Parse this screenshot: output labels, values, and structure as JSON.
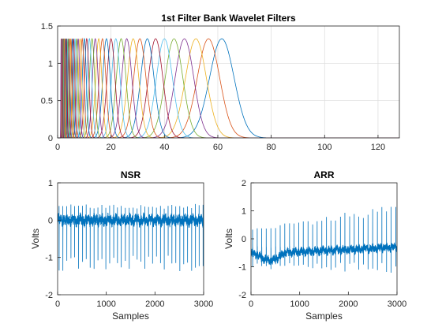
{
  "chart_data": [
    {
      "type": "line",
      "title": "1st Filter Bank Wavelet Filters",
      "xlabel": "",
      "ylabel": "",
      "xlim": [
        0,
        128
      ],
      "ylim": [
        0,
        1.5
      ],
      "xticks": [
        0,
        20,
        40,
        60,
        80,
        100,
        120
      ],
      "yticks": [
        0,
        0.5,
        1,
        1.5
      ],
      "ytick_labels": [
        "0",
        "0.5",
        "1",
        "1.5"
      ],
      "grid": true,
      "peak": 1.33,
      "filter_centers": [
        61.5,
        56.5,
        51.8,
        47.5,
        43.6,
        40.0,
        36.7,
        33.6,
        30.8,
        28.3,
        25.9,
        23.8,
        21.8,
        20.0,
        18.3,
        16.8,
        15.4,
        14.1,
        12.9,
        11.9,
        10.9,
        10.0,
        9.2,
        8.4,
        7.7,
        7.1,
        6.5,
        6.0,
        5.5,
        5.0,
        4.6,
        4.2,
        3.9,
        3.5,
        3.3,
        3.0,
        2.7,
        2.5,
        2.3,
        2.1,
        1.9,
        1.8,
        1.6,
        1.5,
        1.4,
        1.3
      ],
      "filter_widths": [
        4.6,
        4.2,
        3.9,
        3.5,
        3.3,
        3.0,
        2.7,
        2.5,
        2.3,
        2.1,
        1.9,
        1.8,
        1.6,
        1.5,
        1.4,
        1.25,
        1.15,
        1.05,
        0.97,
        0.89,
        0.82,
        0.75,
        0.69,
        0.63,
        0.58,
        0.53,
        0.49,
        0.45,
        0.41,
        0.38,
        0.35,
        0.32,
        0.3,
        0.27,
        0.25,
        0.23,
        0.21,
        0.19,
        0.18,
        0.16,
        0.15,
        0.14,
        0.13,
        0.12,
        0.11,
        0.1
      ],
      "colors": [
        "#0072BD",
        "#D95319",
        "#EDB120",
        "#7E2F8E",
        "#77AC30",
        "#4DBEEE",
        "#A2142F"
      ]
    },
    {
      "type": "line",
      "title": "NSR",
      "xlabel": "Samples",
      "ylabel": "Volts",
      "xlim": [
        0,
        3000
      ],
      "ylim": [
        -2,
        1
      ],
      "xticks": [
        0,
        1000,
        2000,
        3000
      ],
      "yticks": [
        -2,
        -1,
        0,
        1
      ],
      "color": "#0072BD",
      "n_samples": 3000,
      "beat_period": 80,
      "baseline": 0.0,
      "peak_high": 0.38,
      "peak_low": -1.25,
      "noise": 0.12
    },
    {
      "type": "line",
      "title": "ARR",
      "xlabel": "Samples",
      "ylabel": "Volts",
      "xlim": [
        0,
        3000
      ],
      "ylim": [
        -2,
        2
      ],
      "xticks": [
        0,
        1000,
        2000,
        3000
      ],
      "yticks": [
        -2,
        -1,
        0,
        1,
        2
      ],
      "color": "#0072BD",
      "n_samples": 3000,
      "beat_period": 95,
      "baseline_start": -0.55,
      "baseline_end": -0.3,
      "peak_high_start": 0.3,
      "peak_high_end": 1.1,
      "peak_low": -1.1,
      "noise": 0.12
    }
  ]
}
